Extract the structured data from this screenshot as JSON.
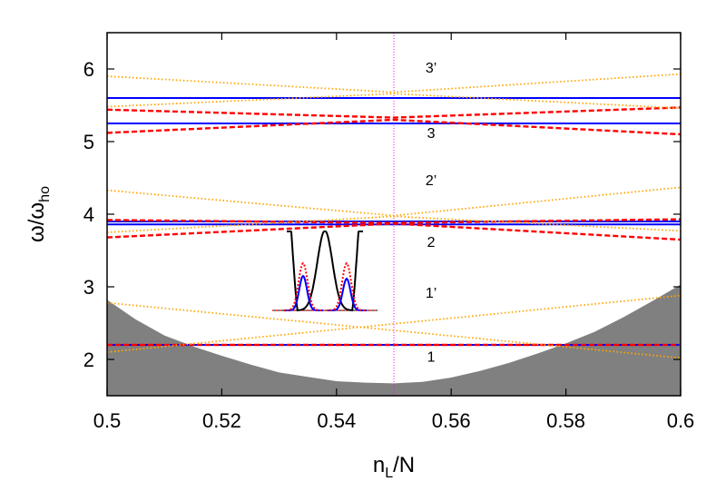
{
  "chart_data": {
    "type": "line",
    "title": "",
    "xlabel": "n_L/N",
    "xlabel_main": "n",
    "xlabel_sub": "L",
    "xlabel_rest": "/N",
    "ylabel": "ω/ω_ho",
    "ylabel_main": "ω/ω",
    "ylabel_sub": "ho",
    "xlim": [
      0.5,
      0.6
    ],
    "ylim": [
      1.5,
      6.5
    ],
    "x_ticks": [
      0.5,
      0.52,
      0.54,
      0.56,
      0.58,
      0.6
    ],
    "x_tick_labels": [
      "0.5",
      "0.52",
      "0.54",
      "0.56",
      "0.58",
      "0.6"
    ],
    "y_ticks": [
      2,
      3,
      4,
      5,
      6
    ],
    "y_tick_labels": [
      "2",
      "3",
      "4",
      "5",
      "6"
    ],
    "grid": false,
    "legend": "none",
    "vertical_marker_x": 0.55,
    "colors": {
      "continuum": "#808080",
      "blue": "#0000ff",
      "red": "#ff0000",
      "orange": "#ffa500",
      "marker": "#ff00ff",
      "inset_potential": "#000000"
    },
    "continuum_edge": {
      "x": [
        0.5,
        0.505,
        0.51,
        0.515,
        0.52,
        0.525,
        0.53,
        0.535,
        0.54,
        0.545,
        0.55,
        0.555,
        0.56,
        0.565,
        0.57,
        0.575,
        0.58,
        0.585,
        0.59,
        0.595,
        0.6
      ],
      "y": [
        2.82,
        2.55,
        2.33,
        2.18,
        2.05,
        1.93,
        1.82,
        1.76,
        1.7,
        1.68,
        1.67,
        1.69,
        1.75,
        1.84,
        1.95,
        2.08,
        2.22,
        2.38,
        2.58,
        2.8,
        3.03
      ]
    },
    "series": [
      {
        "style": "blue-solid",
        "x": [
          0.5,
          0.6
        ],
        "y": [
          5.6,
          5.6
        ]
      },
      {
        "style": "blue-solid",
        "x": [
          0.5,
          0.6
        ],
        "y": [
          5.25,
          5.25
        ]
      },
      {
        "style": "blue-solid",
        "x": [
          0.5,
          0.6
        ],
        "y": [
          3.9,
          3.9
        ]
      },
      {
        "style": "blue-solid",
        "x": [
          0.5,
          0.6
        ],
        "y": [
          3.86,
          3.86
        ]
      },
      {
        "style": "blue-solid",
        "x": [
          0.5,
          0.6
        ],
        "y": [
          2.2,
          2.2
        ]
      },
      {
        "style": "red-dashed",
        "x": [
          0.5,
          0.55,
          0.6
        ],
        "y": [
          5.44,
          5.33,
          5.47
        ]
      },
      {
        "style": "red-dashed",
        "x": [
          0.5,
          0.55,
          0.6
        ],
        "y": [
          5.12,
          5.3,
          5.1
        ]
      },
      {
        "style": "red-dashed",
        "x": [
          0.5,
          0.55,
          0.6
        ],
        "y": [
          3.92,
          3.88,
          3.93
        ]
      },
      {
        "style": "red-dashed",
        "x": [
          0.5,
          0.55,
          0.6
        ],
        "y": [
          3.68,
          3.87,
          3.65
        ]
      },
      {
        "style": "red-dashed",
        "x": [
          0.5,
          0.6
        ],
        "y": [
          2.2,
          2.2
        ]
      },
      {
        "style": "orange-dotted",
        "x": [
          0.5,
          0.55,
          0.6
        ],
        "y": [
          5.9,
          5.68,
          5.93
        ]
      },
      {
        "style": "orange-dotted",
        "x": [
          0.5,
          0.55,
          0.6
        ],
        "y": [
          5.48,
          5.66,
          5.46
        ]
      },
      {
        "style": "orange-dotted",
        "x": [
          0.5,
          0.55,
          0.6
        ],
        "y": [
          4.33,
          3.98,
          4.37
        ]
      },
      {
        "style": "orange-dotted",
        "x": [
          0.5,
          0.55,
          0.6
        ],
        "y": [
          3.75,
          3.97,
          3.77
        ]
      },
      {
        "style": "orange-dotted",
        "x": [
          0.5,
          0.6
        ],
        "y": [
          2.78,
          2.02
        ]
      },
      {
        "style": "orange-dotted",
        "x": [
          0.5,
          0.6
        ],
        "y": [
          2.1,
          2.88
        ]
      }
    ],
    "band_labels": [
      {
        "text": "3’",
        "x": 0.5565,
        "y": 5.95
      },
      {
        "text": "3",
        "x": 0.5565,
        "y": 5.05
      },
      {
        "text": "2’",
        "x": 0.5565,
        "y": 4.4
      },
      {
        "text": "2",
        "x": 0.5565,
        "y": 3.55
      },
      {
        "text": "1’",
        "x": 0.5565,
        "y": 2.85
      },
      {
        "text": "1",
        "x": 0.5565,
        "y": 1.97
      }
    ]
  }
}
